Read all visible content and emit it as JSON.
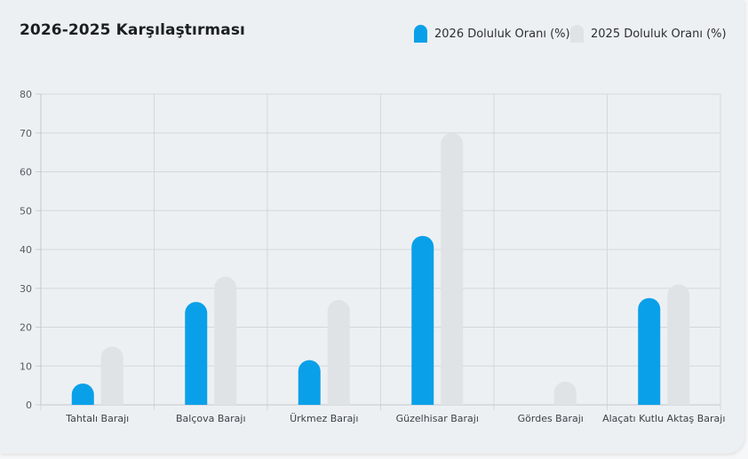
{
  "card": {
    "title": "2026-2025 Karşılaştırması"
  },
  "legend": {
    "items": [
      {
        "label": "2026 Doluluk Oranı (%)",
        "color": "#0aa0e9"
      },
      {
        "label": "2025 Doluluk Oranı (%)",
        "color": "#dfe3e6"
      }
    ]
  },
  "chart_data": {
    "type": "bar",
    "categories": [
      "Tahtalı Barajı",
      "Balçova Barajı",
      "Ürkmez Barajı",
      "Güzelhisar Barajı",
      "Gördes Barajı",
      "Alaçatı Kutlu Aktaş Barajı"
    ],
    "series": [
      {
        "name": "2026 Doluluk Oranı (%)",
        "color": "#0aa0e9",
        "values": [
          5.5,
          26.5,
          11.5,
          43.5,
          0,
          27.5
        ]
      },
      {
        "name": "2025 Doluluk Oranı (%)",
        "color": "#dfe3e6",
        "values": [
          15,
          33,
          27,
          70,
          6,
          31
        ]
      }
    ],
    "ylim": [
      0,
      80
    ],
    "yticks": [
      0,
      10,
      20,
      30,
      40,
      50,
      60,
      70,
      80
    ],
    "grid": true,
    "legend_position": "top-right"
  }
}
